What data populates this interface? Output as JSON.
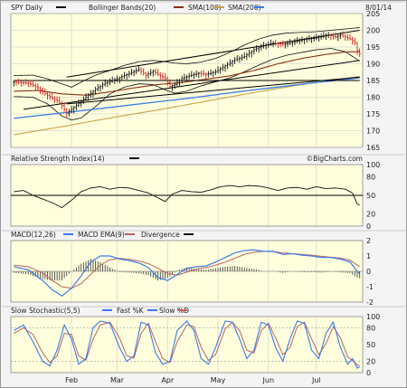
{
  "colors": {
    "page_bg": "#f4f4f4",
    "plot_bg": "#ffffdd",
    "up": "#111111",
    "down": "#cc2222",
    "bollinger": "#111111",
    "sma100": "#8b2f14",
    "sma200": "#c9a14a",
    "sma50": "#3a7be8",
    "grid": "#c8c8c8",
    "line": "#111111",
    "macd": "#3a7be8",
    "macd_ema": "#c06060"
  },
  "chart_data": [
    {
      "type": "line",
      "panel": "price",
      "title": "SPY Daily",
      "date": "8/01/14",
      "legend": [
        "Bollinger Bands(20)",
        "SMA(100)",
        "SMA(200)"
      ],
      "ylim": [
        165,
        205
      ],
      "y_ticks": [
        165,
        170,
        175,
        180,
        185,
        190,
        195,
        200,
        205
      ],
      "month_labels": [
        "Feb",
        "Mar",
        "Apr",
        "May",
        "Jun",
        "Jul"
      ],
      "month_x": [
        24,
        43,
        64,
        85,
        106,
        126
      ],
      "n_days": 145,
      "close_keypoints": [
        [
          0,
          184.5
        ],
        [
          6,
          184.2
        ],
        [
          10,
          182.8
        ],
        [
          14,
          180.5
        ],
        [
          18,
          179.0
        ],
        [
          20,
          177.5
        ],
        [
          22,
          175.2
        ],
        [
          24,
          176.4
        ],
        [
          27,
          178.2
        ],
        [
          30,
          180.0
        ],
        [
          34,
          182.4
        ],
        [
          38,
          184.2
        ],
        [
          43,
          185.5
        ],
        [
          47,
          186.8
        ],
        [
          52,
          188.3
        ],
        [
          55,
          186.6
        ],
        [
          58,
          187.8
        ],
        [
          61,
          186.4
        ],
        [
          63,
          185.6
        ],
        [
          65,
          183.2
        ],
        [
          67,
          183.8
        ],
        [
          70,
          185.6
        ],
        [
          73,
          186.4
        ],
        [
          77,
          187.2
        ],
        [
          80,
          186.8
        ],
        [
          84,
          187.6
        ],
        [
          88,
          189.4
        ],
        [
          92,
          191.2
        ],
        [
          96,
          192.2
        ],
        [
          100,
          194.2
        ],
        [
          104,
          195.4
        ],
        [
          108,
          196.2
        ],
        [
          112,
          195.8
        ],
        [
          116,
          196.4
        ],
        [
          119,
          197.0
        ],
        [
          122,
          197.4
        ],
        [
          125,
          197.6
        ],
        [
          128,
          198.1
        ],
        [
          131,
          198.6
        ],
        [
          134,
          198.0
        ],
        [
          136,
          198.6
        ],
        [
          138,
          198.0
        ],
        [
          140,
          197.4
        ],
        [
          142,
          196.2
        ],
        [
          143,
          193.9
        ],
        [
          144,
          193.0
        ]
      ],
      "sma100_keypoints": [
        [
          0,
          181.8
        ],
        [
          10,
          182.0
        ],
        [
          20,
          181.0
        ],
        [
          30,
          180.6
        ],
        [
          40,
          181.6
        ],
        [
          50,
          182.8
        ],
        [
          60,
          183.8
        ],
        [
          70,
          184.4
        ],
        [
          80,
          185.4
        ],
        [
          90,
          186.4
        ],
        [
          100,
          188.0
        ],
        [
          110,
          190.0
        ],
        [
          120,
          191.6
        ],
        [
          130,
          192.8
        ],
        [
          138,
          193.5
        ],
        [
          144,
          193.6
        ]
      ],
      "sma200_keypoints": [
        [
          0,
          168.8
        ],
        [
          20,
          171.2
        ],
        [
          40,
          173.8
        ],
        [
          60,
          176.2
        ],
        [
          80,
          178.8
        ],
        [
          100,
          181.4
        ],
        [
          120,
          183.8
        ],
        [
          144,
          186.2
        ]
      ],
      "sma50_keypoints": [
        [
          0,
          173.7
        ],
        [
          25,
          175.7
        ],
        [
          50,
          177.8
        ],
        [
          75,
          179.9
        ],
        [
          100,
          182.2
        ],
        [
          125,
          184.3
        ],
        [
          144,
          185.8
        ]
      ],
      "upper_band_keypoints": [
        [
          0,
          186.5
        ],
        [
          8,
          186.6
        ],
        [
          14,
          185.5
        ],
        [
          20,
          184.0
        ],
        [
          24,
          183.0
        ],
        [
          28,
          184.5
        ],
        [
          34,
          186.6
        ],
        [
          40,
          188.0
        ],
        [
          46,
          189.5
        ],
        [
          52,
          190.6
        ],
        [
          58,
          191.0
        ],
        [
          63,
          190.6
        ],
        [
          67,
          190.2
        ],
        [
          72,
          190.0
        ],
        [
          78,
          190.5
        ],
        [
          84,
          191.6
        ],
        [
          90,
          193.4
        ],
        [
          96,
          195.6
        ],
        [
          102,
          197.4
        ],
        [
          108,
          198.6
        ],
        [
          114,
          199.2
        ],
        [
          120,
          199.4
        ],
        [
          126,
          199.6
        ],
        [
          132,
          200.0
        ],
        [
          138,
          200.4
        ],
        [
          144,
          200.8
        ]
      ],
      "lower_band_keypoints": [
        [
          0,
          180.2
        ],
        [
          8,
          180.0
        ],
        [
          14,
          178.0
        ],
        [
          20,
          174.4
        ],
        [
          24,
          173.2
        ],
        [
          28,
          173.8
        ],
        [
          34,
          177.2
        ],
        [
          40,
          181.0
        ],
        [
          46,
          183.0
        ],
        [
          52,
          184.0
        ],
        [
          58,
          183.8
        ],
        [
          63,
          182.2
        ],
        [
          67,
          181.2
        ],
        [
          72,
          181.8
        ],
        [
          78,
          183.4
        ],
        [
          84,
          184.6
        ],
        [
          90,
          185.8
        ],
        [
          96,
          187.6
        ],
        [
          102,
          189.6
        ],
        [
          108,
          191.4
        ],
        [
          114,
          192.6
        ],
        [
          120,
          193.4
        ],
        [
          126,
          194.2
        ],
        [
          132,
          194.6
        ],
        [
          138,
          193.6
        ],
        [
          144,
          190.8
        ]
      ],
      "trendlines": [
        {
          "from": [
            4,
            176.4
          ],
          "to": [
            144,
            191.0
          ]
        },
        {
          "from": [
            22,
            186.0
          ],
          "to": [
            144,
            200.0
          ]
        },
        {
          "from": [
            22,
            178.0
          ],
          "to": [
            144,
            186.0
          ]
        },
        {
          "from": [
            0,
            185.0
          ],
          "to": [
            144,
            185.0
          ]
        }
      ]
    },
    {
      "type": "line",
      "panel": "rsi",
      "title": "Relative Strength Index(14)",
      "ylim": [
        0,
        100
      ],
      "y_ticks": [
        0,
        20,
        50,
        80,
        100
      ],
      "reference_line": 50,
      "keypoints": [
        [
          0,
          56
        ],
        [
          4,
          58
        ],
        [
          8,
          50
        ],
        [
          12,
          44
        ],
        [
          16,
          38
        ],
        [
          20,
          30
        ],
        [
          24,
          42
        ],
        [
          28,
          56
        ],
        [
          32,
          62
        ],
        [
          36,
          64
        ],
        [
          40,
          60
        ],
        [
          44,
          63
        ],
        [
          48,
          62
        ],
        [
          52,
          58
        ],
        [
          56,
          54
        ],
        [
          60,
          46
        ],
        [
          63,
          40
        ],
        [
          66,
          52
        ],
        [
          70,
          58
        ],
        [
          74,
          56
        ],
        [
          78,
          55
        ],
        [
          82,
          59
        ],
        [
          86,
          64
        ],
        [
          90,
          66
        ],
        [
          94,
          64
        ],
        [
          98,
          66
        ],
        [
          102,
          65
        ],
        [
          106,
          62
        ],
        [
          110,
          58
        ],
        [
          114,
          62
        ],
        [
          118,
          63
        ],
        [
          122,
          60
        ],
        [
          126,
          64
        ],
        [
          130,
          61
        ],
        [
          134,
          62
        ],
        [
          138,
          60
        ],
        [
          141,
          54
        ],
        [
          143,
          36
        ],
        [
          144,
          34
        ]
      ]
    },
    {
      "type": "line",
      "panel": "macd",
      "title": "MACD(12,26)",
      "legend": [
        "MACD EMA(9)",
        "Divergence"
      ],
      "ylim": [
        -2,
        2
      ],
      "y_ticks": [
        -2,
        -1,
        0,
        1,
        2
      ],
      "macd_keypoints": [
        [
          0,
          0.3
        ],
        [
          6,
          0.1
        ],
        [
          12,
          -0.6
        ],
        [
          16,
          -1.2
        ],
        [
          20,
          -1.6
        ],
        [
          24,
          -1.1
        ],
        [
          28,
          -0.3
        ],
        [
          32,
          0.6
        ],
        [
          36,
          1.0
        ],
        [
          40,
          1.0
        ],
        [
          44,
          0.8
        ],
        [
          48,
          0.7
        ],
        [
          52,
          0.55
        ],
        [
          56,
          0.25
        ],
        [
          60,
          -0.4
        ],
        [
          64,
          -0.6
        ],
        [
          68,
          -0.2
        ],
        [
          72,
          0.2
        ],
        [
          76,
          0.3
        ],
        [
          80,
          0.35
        ],
        [
          84,
          0.6
        ],
        [
          88,
          0.9
        ],
        [
          92,
          1.2
        ],
        [
          96,
          1.35
        ],
        [
          100,
          1.4
        ],
        [
          104,
          1.3
        ],
        [
          108,
          1.3
        ],
        [
          112,
          1.1
        ],
        [
          116,
          1.15
        ],
        [
          120,
          1.05
        ],
        [
          124,
          1.0
        ],
        [
          128,
          0.9
        ],
        [
          132,
          0.9
        ],
        [
          136,
          0.8
        ],
        [
          140,
          0.6
        ],
        [
          143,
          0.0
        ],
        [
          144,
          -0.15
        ]
      ],
      "signal_keypoints": [
        [
          0,
          0.4
        ],
        [
          6,
          0.3
        ],
        [
          12,
          -0.1
        ],
        [
          16,
          -0.6
        ],
        [
          20,
          -1.0
        ],
        [
          24,
          -1.1
        ],
        [
          28,
          -0.8
        ],
        [
          32,
          -0.2
        ],
        [
          36,
          0.4
        ],
        [
          40,
          0.75
        ],
        [
          44,
          0.85
        ],
        [
          48,
          0.78
        ],
        [
          52,
          0.68
        ],
        [
          56,
          0.5
        ],
        [
          60,
          0.2
        ],
        [
          64,
          -0.15
        ],
        [
          68,
          -0.25
        ],
        [
          72,
          -0.05
        ],
        [
          76,
          0.15
        ],
        [
          80,
          0.25
        ],
        [
          84,
          0.4
        ],
        [
          88,
          0.6
        ],
        [
          92,
          0.85
        ],
        [
          96,
          1.1
        ],
        [
          100,
          1.25
        ],
        [
          104,
          1.3
        ],
        [
          108,
          1.28
        ],
        [
          112,
          1.2
        ],
        [
          116,
          1.15
        ],
        [
          120,
          1.1
        ],
        [
          124,
          1.05
        ],
        [
          128,
          0.98
        ],
        [
          132,
          0.92
        ],
        [
          136,
          0.86
        ],
        [
          140,
          0.72
        ],
        [
          143,
          0.4
        ],
        [
          144,
          0.3
        ]
      ]
    },
    {
      "type": "line",
      "panel": "stochastic",
      "title": "Slow Stochastic(5,5)",
      "legend": [
        "Fast %K",
        "Slow %D"
      ],
      "ylim": [
        0,
        100
      ],
      "y_ticks": [
        0,
        20,
        50,
        80,
        100
      ],
      "k_keypoints": [
        [
          0,
          75
        ],
        [
          4,
          85
        ],
        [
          8,
          55
        ],
        [
          12,
          20
        ],
        [
          15,
          12
        ],
        [
          18,
          40
        ],
        [
          21,
          85
        ],
        [
          24,
          60
        ],
        [
          27,
          15
        ],
        [
          30,
          25
        ],
        [
          33,
          80
        ],
        [
          36,
          92
        ],
        [
          40,
          88
        ],
        [
          44,
          45
        ],
        [
          47,
          20
        ],
        [
          50,
          30
        ],
        [
          53,
          90
        ],
        [
          56,
          85
        ],
        [
          59,
          35
        ],
        [
          62,
          15
        ],
        [
          65,
          20
        ],
        [
          68,
          75
        ],
        [
          72,
          92
        ],
        [
          75,
          75
        ],
        [
          78,
          25
        ],
        [
          81,
          15
        ],
        [
          84,
          45
        ],
        [
          88,
          92
        ],
        [
          91,
          90
        ],
        [
          94,
          60
        ],
        [
          97,
          25
        ],
        [
          100,
          40
        ],
        [
          103,
          90
        ],
        [
          106,
          85
        ],
        [
          109,
          45
        ],
        [
          112,
          20
        ],
        [
          115,
          60
        ],
        [
          118,
          92
        ],
        [
          121,
          88
        ],
        [
          124,
          40
        ],
        [
          127,
          25
        ],
        [
          130,
          70
        ],
        [
          133,
          90
        ],
        [
          136,
          45
        ],
        [
          139,
          15
        ],
        [
          141,
          25
        ],
        [
          143,
          8
        ],
        [
          144,
          10
        ]
      ],
      "d_keypoints": [
        [
          0,
          70
        ],
        [
          4,
          80
        ],
        [
          8,
          68
        ],
        [
          12,
          35
        ],
        [
          15,
          18
        ],
        [
          18,
          30
        ],
        [
          21,
          70
        ],
        [
          24,
          68
        ],
        [
          27,
          30
        ],
        [
          30,
          22
        ],
        [
          33,
          60
        ],
        [
          36,
          85
        ],
        [
          40,
          90
        ],
        [
          44,
          62
        ],
        [
          47,
          30
        ],
        [
          50,
          26
        ],
        [
          53,
          70
        ],
        [
          56,
          88
        ],
        [
          59,
          55
        ],
        [
          62,
          25
        ],
        [
          65,
          18
        ],
        [
          68,
          55
        ],
        [
          72,
          85
        ],
        [
          75,
          82
        ],
        [
          78,
          45
        ],
        [
          81,
          22
        ],
        [
          84,
          32
        ],
        [
          88,
          78
        ],
        [
          91,
          90
        ],
        [
          94,
          75
        ],
        [
          97,
          40
        ],
        [
          100,
          35
        ],
        [
          103,
          75
        ],
        [
          106,
          88
        ],
        [
          109,
          62
        ],
        [
          112,
          32
        ],
        [
          115,
          45
        ],
        [
          118,
          82
        ],
        [
          121,
          90
        ],
        [
          124,
          60
        ],
        [
          127,
          32
        ],
        [
          130,
          52
        ],
        [
          133,
          82
        ],
        [
          136,
          62
        ],
        [
          139,
          28
        ],
        [
          141,
          22
        ],
        [
          143,
          14
        ],
        [
          144,
          12
        ]
      ]
    }
  ],
  "watermark": "©BigCharts.com"
}
